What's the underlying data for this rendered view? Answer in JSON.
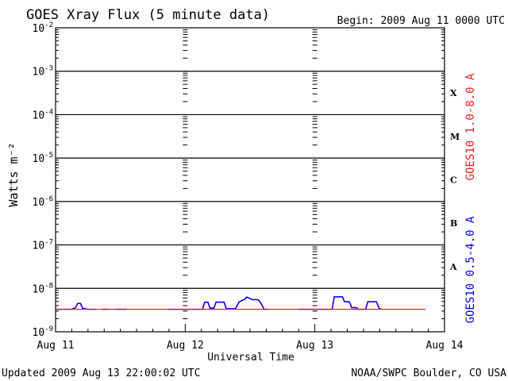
{
  "header": {
    "title": "GOES Xray Flux (5 minute data)",
    "begin": "Begin:  2009 Aug 11 0000 UTC"
  },
  "footer": {
    "updated": "Updated 2009 Aug 13 22:00:02 UTC",
    "source": "NOAA/SWPC Boulder, CO USA"
  },
  "colors": {
    "long_channel": "#dd2222",
    "short_channel": "#0000ee",
    "axes": "#000000"
  },
  "chart_data": {
    "type": "line",
    "title": "GOES Xray Flux (5 minute data)",
    "xlabel": "Universal Time",
    "ylabel": "Watts m⁻²",
    "yscale": "log",
    "ylim": [
      1e-09,
      0.01
    ],
    "xlim": [
      0,
      72
    ],
    "x_units": "hours since 2009 Aug 11 0000 UTC",
    "x_tick_labels": [
      {
        "x": 0,
        "label": "Aug 11"
      },
      {
        "x": 24,
        "label": "Aug 12"
      },
      {
        "x": 48,
        "label": "Aug 13"
      },
      {
        "x": 72,
        "label": "Aug 14"
      }
    ],
    "y_tick_labels": [
      {
        "exp": -2,
        "base": "10",
        "sup": "-2"
      },
      {
        "exp": -3,
        "base": "10",
        "sup": "-3"
      },
      {
        "exp": -4,
        "base": "10",
        "sup": "-4"
      },
      {
        "exp": -5,
        "base": "10",
        "sup": "-5"
      },
      {
        "exp": -6,
        "base": "10",
        "sup": "-6"
      },
      {
        "exp": -7,
        "base": "10",
        "sup": "-7"
      },
      {
        "exp": -8,
        "base": "10",
        "sup": "-8"
      },
      {
        "exp": -9,
        "base": "10",
        "sup": "-9"
      }
    ],
    "flare_classes": [
      {
        "label": "X",
        "exp": -3.5
      },
      {
        "label": "M",
        "exp": -4.5
      },
      {
        "label": "C",
        "exp": -5.5
      },
      {
        "label": "B",
        "exp": -6.5
      },
      {
        "label": "A",
        "exp": -7.5
      }
    ],
    "grid_lines_exp": [
      -3,
      -4,
      -5,
      -6,
      -7,
      -8
    ],
    "series": [
      {
        "name": "GOES10 1.0-8.0 A",
        "color": "#dd2222",
        "points": [
          [
            0,
            3.3e-09
          ],
          [
            68.5,
            3.3e-09
          ]
        ]
      },
      {
        "name": "GOES10 0.5-4.0 A",
        "color": "#0000ee",
        "segments": [
          [
            [
              0,
              3.3e-09
            ],
            [
              3,
              3.3e-09
            ],
            [
              3.7,
              3.6e-09
            ],
            [
              4.1,
              4.5e-09
            ],
            [
              4.6,
              4.5e-09
            ],
            [
              5,
              3.5e-09
            ],
            [
              6,
              3.3e-09
            ],
            [
              7.5,
              3.3e-09
            ]
          ],
          [
            [
              8.6,
              3.3e-09
            ],
            [
              9.8,
              3.3e-09
            ]
          ],
          [
            [
              11.1,
              3.3e-09
            ],
            [
              13.2,
              3.3e-09
            ]
          ],
          [
            [
              20.8,
              3.3e-09
            ],
            [
              27.2,
              3.3e-09
            ],
            [
              27.6,
              4.8e-09
            ],
            [
              28.2,
              4.8e-09
            ],
            [
              28.6,
              3.5e-09
            ],
            [
              29.3,
              3.5e-09
            ],
            [
              29.7,
              4.8e-09
            ],
            [
              31.2,
              4.8e-09
            ],
            [
              31.6,
              3.4e-09
            ],
            [
              33.3,
              3.4e-09
            ],
            [
              34,
              4.9e-09
            ],
            [
              35,
              5.6e-09
            ],
            [
              35.4,
              6.3e-09
            ],
            [
              36.4,
              5.5e-09
            ],
            [
              37.5,
              5.5e-09
            ],
            [
              38,
              4.6e-09
            ],
            [
              38.6,
              3.3e-09
            ],
            [
              39.4,
              3.3e-09
            ]
          ],
          [
            [
              45,
              3.3e-09
            ],
            [
              51.2,
              3.3e-09
            ],
            [
              51.6,
              6.4e-09
            ],
            [
              53.1,
              6.4e-09
            ],
            [
              53.5,
              4.9e-09
            ],
            [
              54.4,
              4.9e-09
            ],
            [
              54.8,
              3.6e-09
            ],
            [
              55.7,
              3.6e-09
            ],
            [
              56,
              3.3e-09
            ],
            [
              57.4,
              3.3e-09
            ],
            [
              57.8,
              4.9e-09
            ],
            [
              59.4,
              4.9e-09
            ],
            [
              59.9,
              3.5e-09
            ],
            [
              60.3,
              3.3e-09
            ]
          ]
        ]
      }
    ],
    "legend": "right side, vertical text",
    "grid": "horizontal at each decade, dashed vertical at day boundaries"
  }
}
